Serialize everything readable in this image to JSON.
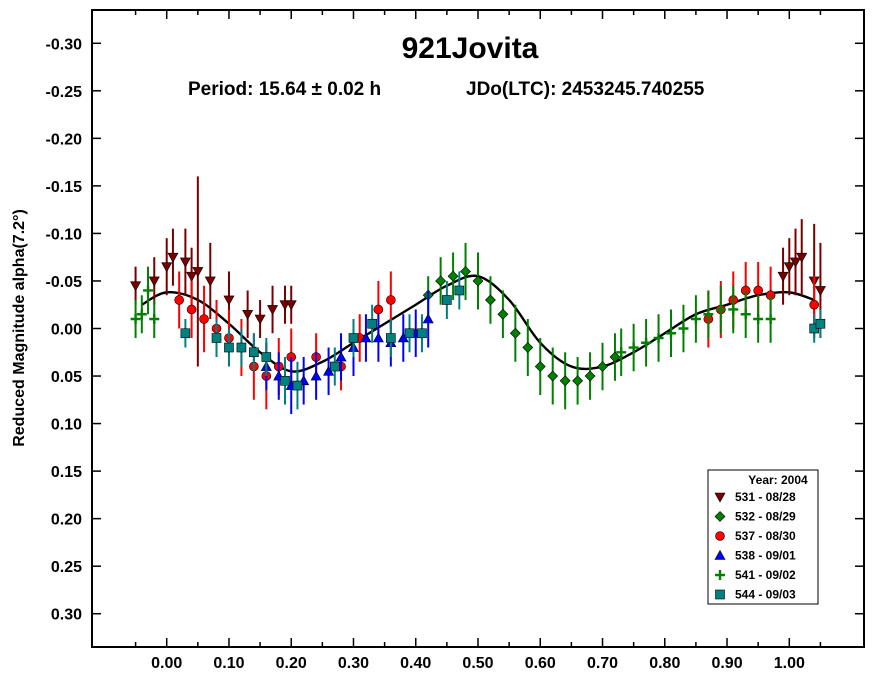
{
  "chart_data": {
    "type": "scatter",
    "title": "921Jovita",
    "subtitle_period": "Period: 15.64 ± 0.02 h",
    "subtitle_epoch": "JDo(LTC): 2453245.740255",
    "xlabel": "",
    "ylabel": "Reduced Magnitude alpha(7.2°)",
    "xlim": [
      -0.12,
      1.12
    ],
    "ylim": [
      0.335,
      -0.335
    ],
    "y_inverted": true,
    "x_ticks": [
      "0.00",
      "0.10",
      "0.20",
      "0.30",
      "0.40",
      "0.50",
      "0.60",
      "0.70",
      "0.80",
      "0.90",
      "1.00"
    ],
    "y_ticks": [
      "-0.30",
      "-0.25",
      "-0.20",
      "-0.15",
      "-0.10",
      "-0.05",
      "0.00",
      "0.05",
      "0.10",
      "0.15",
      "0.20",
      "0.25",
      "0.30"
    ],
    "grid": false,
    "legend_title": "Year: 2004",
    "legend_position": "bottom-right",
    "fit_curve": {
      "color": "#000000",
      "x": [
        -0.04,
        0.0,
        0.05,
        0.1,
        0.15,
        0.2,
        0.25,
        0.3,
        0.35,
        0.4,
        0.45,
        0.5,
        0.55,
        0.6,
        0.65,
        0.7,
        0.75,
        0.8,
        0.85,
        0.9,
        0.95,
        1.0,
        1.04
      ],
      "y": [
        -0.025,
        -0.038,
        -0.03,
        -0.005,
        0.025,
        0.045,
        0.035,
        0.015,
        -0.005,
        -0.025,
        -0.045,
        -0.055,
        -0.03,
        0.015,
        0.04,
        0.04,
        0.025,
        0.005,
        -0.015,
        -0.025,
        -0.035,
        -0.038,
        -0.03
      ]
    },
    "series": [
      {
        "name": "531 - 08/28",
        "marker": "triangle-down",
        "color": "#7a0000",
        "x": [
          -0.05,
          -0.02,
          0.0,
          0.01,
          0.03,
          0.04,
          0.05,
          0.07,
          0.1,
          0.13,
          0.15,
          0.17,
          0.19,
          0.2,
          0.99,
          1.0,
          1.01,
          1.02,
          1.04,
          1.05
        ],
        "y": [
          -0.045,
          -0.05,
          -0.065,
          -0.075,
          -0.07,
          -0.055,
          -0.06,
          -0.05,
          -0.03,
          -0.015,
          -0.01,
          -0.02,
          -0.025,
          -0.025,
          -0.055,
          -0.065,
          -0.07,
          -0.075,
          -0.05,
          -0.04
        ],
        "err": [
          0.02,
          0.025,
          0.03,
          0.03,
          0.035,
          0.03,
          0.1,
          0.04,
          0.03,
          0.025,
          0.02,
          0.025,
          0.02,
          0.02,
          0.03,
          0.03,
          0.035,
          0.04,
          0.06,
          0.05
        ]
      },
      {
        "name": "532 - 08/29",
        "marker": "diamond",
        "color": "#008000",
        "x": [
          0.42,
          0.44,
          0.46,
          0.48,
          0.5,
          0.52,
          0.54,
          0.56,
          0.58,
          0.6,
          0.62,
          0.64,
          0.66,
          0.68,
          0.7,
          0.72
        ],
        "y": [
          -0.035,
          -0.05,
          -0.055,
          -0.06,
          -0.05,
          -0.03,
          -0.015,
          0.005,
          0.02,
          0.04,
          0.05,
          0.055,
          0.055,
          0.05,
          0.04,
          0.03
        ],
        "err": [
          0.02,
          0.025,
          0.025,
          0.03,
          0.03,
          0.025,
          0.025,
          0.03,
          0.03,
          0.03,
          0.03,
          0.03,
          0.025,
          0.025,
          0.025,
          0.025
        ]
      },
      {
        "name": "537 - 08/30",
        "marker": "circle",
        "color": "#ff0000",
        "x": [
          0.02,
          0.04,
          0.06,
          0.08,
          0.1,
          0.12,
          0.14,
          0.16,
          0.18,
          0.2,
          0.24,
          0.28,
          0.31,
          0.34,
          0.36,
          0.87,
          0.89,
          0.91,
          0.93,
          0.95,
          0.97,
          1.04
        ],
        "y": [
          -0.03,
          -0.02,
          -0.01,
          0.0,
          0.01,
          0.02,
          0.04,
          0.05,
          0.04,
          0.03,
          0.03,
          0.04,
          0.01,
          -0.02,
          -0.03,
          -0.01,
          -0.02,
          -0.03,
          -0.04,
          -0.04,
          -0.035,
          -0.025
        ],
        "err": [
          0.03,
          0.03,
          0.035,
          0.03,
          0.03,
          0.03,
          0.035,
          0.035,
          0.03,
          0.03,
          0.025,
          0.025,
          0.025,
          0.03,
          0.03,
          0.03,
          0.03,
          0.03,
          0.03,
          0.03,
          0.03,
          0.03
        ]
      },
      {
        "name": "538 - 09/01",
        "marker": "triangle-up",
        "color": "#0000ff",
        "x": [
          0.16,
          0.18,
          0.2,
          0.22,
          0.24,
          0.26,
          0.28,
          0.3,
          0.32,
          0.34,
          0.36,
          0.38,
          0.4,
          0.42
        ],
        "y": [
          0.04,
          0.05,
          0.06,
          0.055,
          0.05,
          0.045,
          0.03,
          0.02,
          0.01,
          0.01,
          0.015,
          0.01,
          0.005,
          -0.01
        ],
        "err": [
          0.025,
          0.025,
          0.03,
          0.025,
          0.025,
          0.025,
          0.025,
          0.03,
          0.025,
          0.025,
          0.025,
          0.025,
          0.025,
          0.03
        ]
      },
      {
        "name": "541 - 09/02",
        "marker": "plus",
        "color": "#008000",
        "x": [
          -0.05,
          -0.04,
          -0.03,
          -0.02,
          0.73,
          0.75,
          0.77,
          0.79,
          0.81,
          0.83,
          0.85,
          0.87,
          0.89,
          0.91,
          0.93,
          0.95,
          0.97
        ],
        "y": [
          -0.01,
          -0.015,
          -0.04,
          -0.01,
          0.025,
          0.02,
          0.015,
          0.01,
          0.005,
          0.0,
          -0.01,
          -0.015,
          -0.02,
          -0.02,
          -0.015,
          -0.01,
          -0.01
        ],
        "err": [
          0.02,
          0.02,
          0.025,
          0.02,
          0.025,
          0.025,
          0.025,
          0.025,
          0.025,
          0.025,
          0.025,
          0.025,
          0.025,
          0.025,
          0.025,
          0.025,
          0.025
        ]
      },
      {
        "name": "544 - 09/03",
        "marker": "square",
        "color": "#008080",
        "x": [
          0.03,
          0.08,
          0.1,
          0.12,
          0.14,
          0.16,
          0.19,
          0.21,
          0.27,
          0.3,
          0.33,
          0.36,
          0.39,
          0.41,
          0.45,
          0.47,
          1.04,
          1.05
        ],
        "y": [
          0.005,
          0.01,
          0.02,
          0.02,
          0.025,
          0.03,
          0.055,
          0.06,
          0.04,
          0.01,
          -0.005,
          0.01,
          0.005,
          0.005,
          -0.03,
          -0.04,
          0.0,
          -0.005
        ],
        "err": [
          0.015,
          0.02,
          0.02,
          0.02,
          0.02,
          0.02,
          0.025,
          0.025,
          0.02,
          0.02,
          0.02,
          0.02,
          0.02,
          0.02,
          0.02,
          0.02,
          0.015,
          0.015
        ]
      }
    ]
  }
}
